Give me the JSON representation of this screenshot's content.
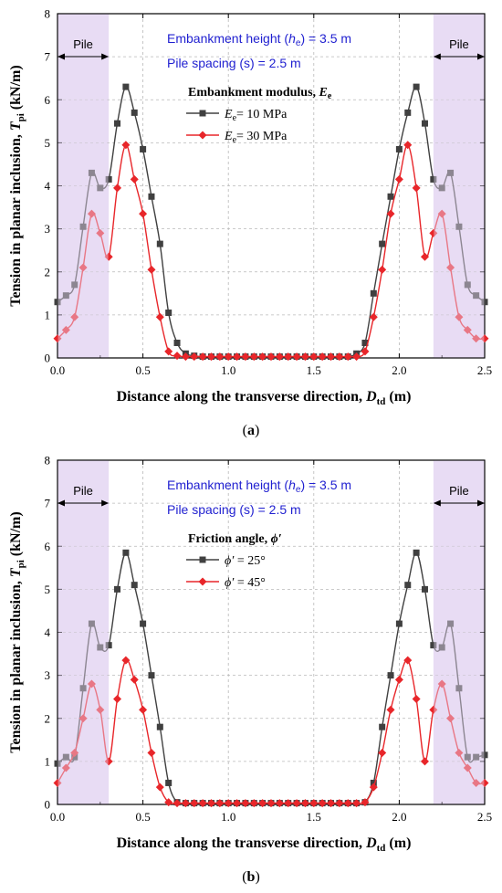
{
  "figure": {
    "colors": {
      "series1": "#404040",
      "series2": "#e8262a",
      "pile_zone": "#e8dcf5",
      "annotation": "#1f1fd0"
    }
  },
  "chart_data": [
    {
      "type": "line",
      "caption": "(a)",
      "xlabel": "Distance along the transverse direction, D_td (m)",
      "xlabel_main": "Distance along the transverse direction, ",
      "xlabel_var": "D",
      "xlabel_sub": "td",
      "xlabel_unit": " (m)",
      "ylabel": "Tension in planar inclusion, T_pi (kN/m)",
      "ylabel_main": "Tension in planar inclusion, ",
      "ylabel_var": "T",
      "ylabel_sub": "pi",
      "ylabel_unit": " (kN/m)",
      "xlim": [
        0,
        2.5
      ],
      "ylim": [
        0,
        8
      ],
      "xticks": [
        "0.0",
        "0.5",
        "1.0",
        "1.5",
        "2.0",
        "2.5"
      ],
      "yticks": [
        "0",
        "1",
        "2",
        "3",
        "4",
        "5",
        "6",
        "7",
        "8"
      ],
      "grid": true,
      "pile_zones": [
        [
          0,
          0.3
        ],
        [
          2.2,
          2.5
        ]
      ],
      "pile_label": "Pile",
      "annotations": [
        "Embankment height (h_e) = 3.5 m",
        "Pile spacing (s) = 2.5 m"
      ],
      "ann1": {
        "pre": "Embankment height (",
        "var": "h",
        "sub": "e",
        "post": ") = 3.5 m"
      },
      "ann2": "Pile spacing (s) = 2.5 m",
      "legend_title": "Embankment modulus, E_e",
      "legend_title_main": "Embankment modulus, ",
      "legend_title_var": "E",
      "legend_title_sub": "e",
      "legend_position": "top-center",
      "series": [
        {
          "name": "E_e = 10 MPa",
          "label_var": "E",
          "label_sub": "e",
          "label_rest": "= 10 MPa",
          "marker": "square",
          "x": [
            0.0,
            0.05,
            0.1,
            0.15,
            0.2,
            0.25,
            0.3,
            0.35,
            0.4,
            0.45,
            0.5,
            0.55,
            0.6,
            0.65,
            0.7,
            0.75,
            0.8,
            0.85,
            0.9,
            0.95,
            1.0,
            1.05,
            1.1,
            1.15,
            1.2,
            1.25,
            1.3,
            1.35,
            1.4,
            1.45,
            1.5,
            1.55,
            1.6,
            1.65,
            1.7,
            1.75,
            1.8,
            1.85,
            1.9,
            1.95,
            2.0,
            2.05,
            2.1,
            2.15,
            2.2,
            2.25,
            2.3,
            2.35,
            2.4,
            2.45,
            2.5
          ],
          "y": [
            1.3,
            1.45,
            1.7,
            3.05,
            4.3,
            3.95,
            4.15,
            5.45,
            6.3,
            5.7,
            4.85,
            3.75,
            2.65,
            1.05,
            0.35,
            0.1,
            0.05,
            0.03,
            0.03,
            0.03,
            0.03,
            0.03,
            0.03,
            0.03,
            0.03,
            0.03,
            0.03,
            0.03,
            0.03,
            0.03,
            0.03,
            0.03,
            0.03,
            0.03,
            0.03,
            0.1,
            0.35,
            1.5,
            2.65,
            3.75,
            4.85,
            5.7,
            6.3,
            5.45,
            4.15,
            3.95,
            4.3,
            3.05,
            1.7,
            1.45,
            1.3
          ]
        },
        {
          "name": "E_e = 30 MPa",
          "label_var": "E",
          "label_sub": "e",
          "label_rest": "= 30 MPa",
          "marker": "diamond",
          "x": [
            0.0,
            0.05,
            0.1,
            0.15,
            0.2,
            0.25,
            0.3,
            0.35,
            0.4,
            0.45,
            0.5,
            0.55,
            0.6,
            0.65,
            0.7,
            0.75,
            0.8,
            0.85,
            0.9,
            0.95,
            1.0,
            1.05,
            1.1,
            1.15,
            1.2,
            1.25,
            1.3,
            1.35,
            1.4,
            1.45,
            1.5,
            1.55,
            1.6,
            1.65,
            1.7,
            1.75,
            1.8,
            1.85,
            1.9,
            1.95,
            2.0,
            2.05,
            2.1,
            2.15,
            2.2,
            2.25,
            2.3,
            2.35,
            2.4,
            2.45,
            2.5
          ],
          "y": [
            0.45,
            0.65,
            0.95,
            2.1,
            3.35,
            2.9,
            2.35,
            3.95,
            4.95,
            4.15,
            3.35,
            2.05,
            0.95,
            0.15,
            0.05,
            0.03,
            0.03,
            0.03,
            0.03,
            0.03,
            0.03,
            0.03,
            0.03,
            0.03,
            0.03,
            0.03,
            0.03,
            0.03,
            0.03,
            0.03,
            0.03,
            0.03,
            0.03,
            0.03,
            0.03,
            0.03,
            0.15,
            0.95,
            2.05,
            3.35,
            4.15,
            4.95,
            3.95,
            2.35,
            2.9,
            3.35,
            2.1,
            0.95,
            0.65,
            0.45,
            0.45
          ]
        }
      ]
    },
    {
      "type": "line",
      "caption": "(b)",
      "xlabel": "Distance along the transverse direction, D_td (m)",
      "xlabel_main": "Distance along the transverse direction, ",
      "xlabel_var": "D",
      "xlabel_sub": "td",
      "xlabel_unit": " (m)",
      "ylabel": "Tension in planar inclusion, T_pi (kN/m)",
      "ylabel_main": "Tension in planar inclusion, ",
      "ylabel_var": "T",
      "ylabel_sub": "pi",
      "ylabel_unit": " (kN/m)",
      "xlim": [
        0,
        2.5
      ],
      "ylim": [
        0,
        8
      ],
      "xticks": [
        "0.0",
        "0.5",
        "1.0",
        "1.5",
        "2.0",
        "2.5"
      ],
      "yticks": [
        "0",
        "1",
        "2",
        "3",
        "4",
        "5",
        "6",
        "7",
        "8"
      ],
      "grid": true,
      "pile_zones": [
        [
          0,
          0.3
        ],
        [
          2.2,
          2.5
        ]
      ],
      "pile_label": "Pile",
      "annotations": [
        "Embankment height (h_e) = 3.5 m",
        "Pile spacing (s) = 2.5 m"
      ],
      "ann1": {
        "pre": "Embankment height (",
        "var": "h",
        "sub": "e",
        "post": ") = 3.5 m"
      },
      "ann2": "Pile spacing (s) = 2.5 m",
      "legend_title": "Friction angle, ϕ′",
      "legend_title_main": "Friction angle, ",
      "legend_title_var": "ϕ′",
      "legend_title_sub": "",
      "legend_position": "top-center",
      "series": [
        {
          "name": "ϕ′ = 25°",
          "label_var": "ϕ′",
          "label_sub": "",
          "label_rest": " = 25°",
          "marker": "square",
          "x": [
            0.0,
            0.05,
            0.1,
            0.15,
            0.2,
            0.25,
            0.3,
            0.35,
            0.4,
            0.45,
            0.5,
            0.55,
            0.6,
            0.65,
            0.7,
            0.75,
            0.8,
            0.85,
            0.9,
            0.95,
            1.0,
            1.05,
            1.1,
            1.15,
            1.2,
            1.25,
            1.3,
            1.35,
            1.4,
            1.45,
            1.5,
            1.55,
            1.6,
            1.65,
            1.7,
            1.75,
            1.8,
            1.85,
            1.9,
            1.95,
            2.0,
            2.05,
            2.1,
            2.15,
            2.2,
            2.25,
            2.3,
            2.35,
            2.4,
            2.45,
            2.5
          ],
          "y": [
            0.95,
            1.1,
            1.1,
            2.7,
            4.2,
            3.65,
            3.7,
            5.0,
            5.85,
            5.1,
            4.2,
            3.0,
            1.8,
            0.5,
            0.05,
            0.03,
            0.03,
            0.03,
            0.03,
            0.03,
            0.03,
            0.03,
            0.03,
            0.03,
            0.03,
            0.03,
            0.03,
            0.03,
            0.03,
            0.03,
            0.03,
            0.03,
            0.03,
            0.03,
            0.03,
            0.03,
            0.05,
            0.5,
            1.8,
            3.0,
            4.2,
            5.1,
            5.85,
            5.0,
            3.7,
            3.65,
            4.2,
            2.7,
            1.1,
            1.1,
            1.15
          ]
        },
        {
          "name": "ϕ′ = 45°",
          "label_var": "ϕ′",
          "label_sub": "",
          "label_rest": " = 45°",
          "marker": "diamond",
          "x": [
            0.0,
            0.05,
            0.1,
            0.15,
            0.2,
            0.25,
            0.3,
            0.35,
            0.4,
            0.45,
            0.5,
            0.55,
            0.6,
            0.65,
            0.7,
            0.75,
            0.8,
            0.85,
            0.9,
            0.95,
            1.0,
            1.05,
            1.1,
            1.15,
            1.2,
            1.25,
            1.3,
            1.35,
            1.4,
            1.45,
            1.5,
            1.55,
            1.6,
            1.65,
            1.7,
            1.75,
            1.8,
            1.85,
            1.9,
            1.95,
            2.0,
            2.05,
            2.1,
            2.15,
            2.2,
            2.25,
            2.3,
            2.35,
            2.4,
            2.45,
            2.5
          ],
          "y": [
            0.5,
            0.85,
            1.2,
            2.0,
            2.8,
            2.2,
            1.0,
            2.45,
            3.35,
            2.9,
            2.2,
            1.2,
            0.4,
            0.05,
            0.03,
            0.03,
            0.03,
            0.03,
            0.03,
            0.03,
            0.03,
            0.03,
            0.03,
            0.03,
            0.03,
            0.03,
            0.03,
            0.03,
            0.03,
            0.03,
            0.03,
            0.03,
            0.03,
            0.03,
            0.03,
            0.03,
            0.05,
            0.4,
            1.2,
            2.2,
            2.9,
            3.35,
            2.45,
            1.0,
            2.2,
            2.8,
            2.0,
            1.2,
            0.85,
            0.5,
            0.5
          ]
        }
      ]
    }
  ]
}
